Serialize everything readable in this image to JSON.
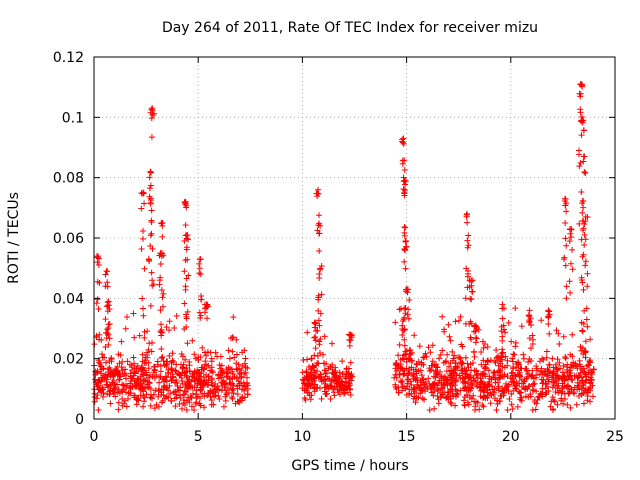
{
  "chart_data": {
    "type": "scatter",
    "title": "Day 264 of 2011, Rate Of TEC Index for receiver mizu",
    "xlabel": "GPS time / hours",
    "ylabel": "ROTI / TECUs",
    "xlim": [
      0,
      25
    ],
    "ylim": [
      0,
      0.12
    ],
    "xticks": [
      0,
      5,
      10,
      15,
      20,
      25
    ],
    "xtick_labels": [
      "0",
      "5",
      "10",
      "15",
      "20",
      "25"
    ],
    "yticks": [
      0,
      0.02,
      0.04,
      0.06,
      0.08,
      0.1,
      0.12
    ],
    "ytick_labels": [
      "0",
      "0.02",
      "0.04",
      "0.06",
      "0.08",
      "0.1",
      "0.12"
    ],
    "grid": true,
    "marker": "plus",
    "color": "#ff0000",
    "series": [
      {
        "name": "ROTI",
        "segments": [
          {
            "x_start": 0.0,
            "x_end": 7.4,
            "base": 0.0125,
            "spread": 0.012
          },
          {
            "x_start": 10.0,
            "x_end": 11.6,
            "base": 0.013,
            "spread": 0.01
          },
          {
            "x_start": 11.6,
            "x_end": 12.4,
            "base": 0.012,
            "spread": 0.006
          },
          {
            "x_start": 14.4,
            "x_end": 15.3,
            "base": 0.015,
            "spread": 0.014
          },
          {
            "x_start": 15.3,
            "x_end": 24.0,
            "base": 0.0125,
            "spread": 0.012
          }
        ],
        "peaks": [
          {
            "x": 0.2,
            "y": 0.054
          },
          {
            "x": 0.6,
            "y": 0.049
          },
          {
            "x": 0.7,
            "y": 0.039
          },
          {
            "x": 2.35,
            "y": 0.075
          },
          {
            "x": 2.7,
            "y": 0.082
          },
          {
            "x": 2.8,
            "y": 0.103
          },
          {
            "x": 3.2,
            "y": 0.055
          },
          {
            "x": 3.25,
            "y": 0.065
          },
          {
            "x": 4.4,
            "y": 0.072
          },
          {
            "x": 4.45,
            "y": 0.061
          },
          {
            "x": 5.1,
            "y": 0.053
          },
          {
            "x": 5.4,
            "y": 0.038
          },
          {
            "x": 10.6,
            "y": 0.032
          },
          {
            "x": 10.75,
            "y": 0.076
          },
          {
            "x": 10.85,
            "y": 0.064
          },
          {
            "x": 12.3,
            "y": 0.028
          },
          {
            "x": 14.85,
            "y": 0.093
          },
          {
            "x": 14.9,
            "y": 0.079
          },
          {
            "x": 14.95,
            "y": 0.059
          },
          {
            "x": 15.05,
            "y": 0.043
          },
          {
            "x": 17.9,
            "y": 0.068
          },
          {
            "x": 18.1,
            "y": 0.046
          },
          {
            "x": 18.3,
            "y": 0.031
          },
          {
            "x": 19.6,
            "y": 0.038
          },
          {
            "x": 20.9,
            "y": 0.036
          },
          {
            "x": 21.8,
            "y": 0.036
          },
          {
            "x": 22.6,
            "y": 0.073
          },
          {
            "x": 22.9,
            "y": 0.063
          },
          {
            "x": 23.35,
            "y": 0.111
          },
          {
            "x": 23.45,
            "y": 0.099
          },
          {
            "x": 23.5,
            "y": 0.087
          },
          {
            "x": 23.6,
            "y": 0.067
          }
        ]
      }
    ]
  }
}
